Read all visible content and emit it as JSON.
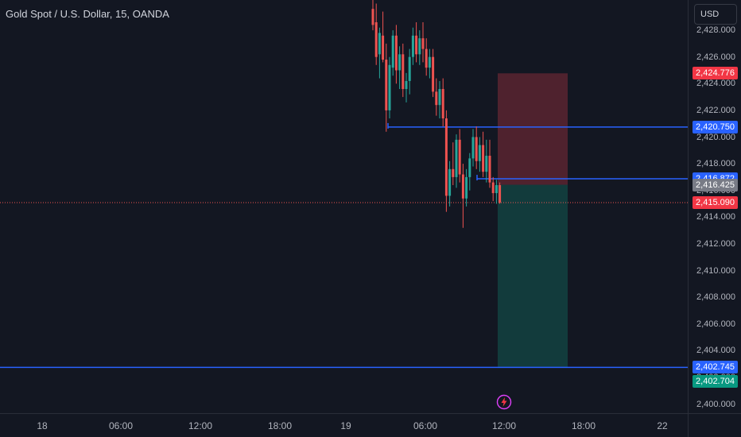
{
  "header": {
    "symbol_title": "Gold Spot / U.S. Dollar, 15, OANDA"
  },
  "price_scale": {
    "currency": "USD",
    "ticks": [
      "2,428.000",
      "2,426.000",
      "2,424.000",
      "2,422.000",
      "2,420.000",
      "2,418.000",
      "2,416.000",
      "2,414.000",
      "2,412.000",
      "2,410.000",
      "2,408.000",
      "2,406.000",
      "2,404.000",
      "2,402.000",
      "2,400.000"
    ],
    "tick_values": [
      2428,
      2426,
      2424,
      2422,
      2420,
      2418,
      2416,
      2414,
      2412,
      2410,
      2408,
      2406,
      2404,
      2402,
      2400
    ],
    "labels": [
      {
        "text": "2,424.776",
        "value": 2424.776,
        "color": "#f23645"
      },
      {
        "text": "2,420.750",
        "value": 2420.75,
        "color": "#2962ff"
      },
      {
        "text": "2,416.872",
        "value": 2416.872,
        "color": "#2962ff"
      },
      {
        "text": "2,416.425",
        "value": 2416.425,
        "color": "#787b86"
      },
      {
        "text": "2,415.090",
        "value": 2415.09,
        "color": "#f23645"
      },
      {
        "text": "2,402.745",
        "value": 2402.745,
        "color": "#2962ff"
      },
      {
        "text": "2,402.704",
        "value": 2402.704,
        "color": "#089981"
      }
    ]
  },
  "time_scale": {
    "labels": [
      "18",
      "06:00",
      "12:00",
      "18:00",
      "19",
      "06:00",
      "12:00",
      "18:00",
      "22"
    ]
  },
  "drawings": {
    "horizontal_lines": [
      2420.75,
      2416.872,
      2402.745
    ],
    "current_price": 2415.09,
    "position": {
      "entry": 2416.425,
      "stop": 2424.776,
      "target": 2402.704
    }
  },
  "colors": {
    "background": "#131722",
    "up_candle": "#26a69a",
    "down_candle": "#ef5350",
    "line_blue": "#2962ff",
    "stop_zone": "#5a2530",
    "target_zone": "#133f3f"
  },
  "icons": {
    "flash": "lightning-bolt-icon"
  },
  "chart_data": {
    "type": "candlestick",
    "title": "Gold Spot / U.S. Dollar, 15, OANDA",
    "ylim": [
      2400,
      2428.6
    ],
    "candles": [
      {
        "o": 2429.6,
        "h": 2430.8,
        "l": 2428.0,
        "c": 2428.4
      },
      {
        "o": 2428.6,
        "h": 2430.0,
        "l": 2425.4,
        "c": 2426.0
      },
      {
        "o": 2426.2,
        "h": 2428.2,
        "l": 2424.4,
        "c": 2427.8
      },
      {
        "o": 2427.6,
        "h": 2429.4,
        "l": 2425.6,
        "c": 2425.8
      },
      {
        "o": 2425.8,
        "h": 2427.0,
        "l": 2420.4,
        "c": 2422.0
      },
      {
        "o": 2422.0,
        "h": 2426.0,
        "l": 2421.4,
        "c": 2425.4
      },
      {
        "o": 2425.2,
        "h": 2428.0,
        "l": 2424.6,
        "c": 2427.6
      },
      {
        "o": 2427.6,
        "h": 2428.4,
        "l": 2424.0,
        "c": 2425.0
      },
      {
        "o": 2425.0,
        "h": 2426.8,
        "l": 2423.6,
        "c": 2426.2
      },
      {
        "o": 2426.2,
        "h": 2427.0,
        "l": 2423.0,
        "c": 2423.6
      },
      {
        "o": 2423.6,
        "h": 2424.8,
        "l": 2422.6,
        "c": 2424.2
      },
      {
        "o": 2424.2,
        "h": 2426.6,
        "l": 2423.2,
        "c": 2426.0
      },
      {
        "o": 2426.0,
        "h": 2428.2,
        "l": 2425.4,
        "c": 2427.6
      },
      {
        "o": 2427.6,
        "h": 2428.6,
        "l": 2425.6,
        "c": 2426.2
      },
      {
        "o": 2426.2,
        "h": 2428.0,
        "l": 2425.4,
        "c": 2427.4
      },
      {
        "o": 2427.4,
        "h": 2428.6,
        "l": 2425.6,
        "c": 2426.6
      },
      {
        "o": 2426.6,
        "h": 2427.4,
        "l": 2424.6,
        "c": 2425.2
      },
      {
        "o": 2425.2,
        "h": 2426.6,
        "l": 2424.4,
        "c": 2426.0
      },
      {
        "o": 2426.0,
        "h": 2426.6,
        "l": 2423.0,
        "c": 2423.4
      },
      {
        "o": 2423.4,
        "h": 2424.4,
        "l": 2421.6,
        "c": 2422.4
      },
      {
        "o": 2422.4,
        "h": 2424.2,
        "l": 2421.4,
        "c": 2423.6
      },
      {
        "o": 2423.6,
        "h": 2424.4,
        "l": 2420.8,
        "c": 2421.4
      },
      {
        "o": 2421.4,
        "h": 2422.0,
        "l": 2414.4,
        "c": 2415.6
      },
      {
        "o": 2415.6,
        "h": 2418.2,
        "l": 2414.8,
        "c": 2417.6
      },
      {
        "o": 2417.6,
        "h": 2419.6,
        "l": 2416.4,
        "c": 2417.0
      },
      {
        "o": 2417.0,
        "h": 2420.2,
        "l": 2416.2,
        "c": 2419.8
      },
      {
        "o": 2419.8,
        "h": 2420.6,
        "l": 2416.6,
        "c": 2417.2
      },
      {
        "o": 2417.2,
        "h": 2418.0,
        "l": 2413.2,
        "c": 2415.4
      },
      {
        "o": 2415.4,
        "h": 2417.6,
        "l": 2414.8,
        "c": 2417.0
      },
      {
        "o": 2417.0,
        "h": 2418.8,
        "l": 2416.0,
        "c": 2418.4
      },
      {
        "o": 2418.4,
        "h": 2420.6,
        "l": 2417.8,
        "c": 2420.0
      },
      {
        "o": 2420.0,
        "h": 2420.8,
        "l": 2417.6,
        "c": 2418.2
      },
      {
        "o": 2418.2,
        "h": 2420.0,
        "l": 2417.4,
        "c": 2419.4
      },
      {
        "o": 2419.4,
        "h": 2420.4,
        "l": 2417.0,
        "c": 2417.4
      },
      {
        "o": 2417.4,
        "h": 2419.8,
        "l": 2416.6,
        "c": 2418.6
      },
      {
        "o": 2418.6,
        "h": 2419.8,
        "l": 2416.2,
        "c": 2416.6
      },
      {
        "o": 2416.6,
        "h": 2417.0,
        "l": 2415.2,
        "c": 2415.8
      },
      {
        "o": 2415.8,
        "h": 2416.8,
        "l": 2415.0,
        "c": 2416.4
      },
      {
        "o": 2416.4,
        "h": 2416.6,
        "l": 2415.0,
        "c": 2415.1
      }
    ]
  }
}
